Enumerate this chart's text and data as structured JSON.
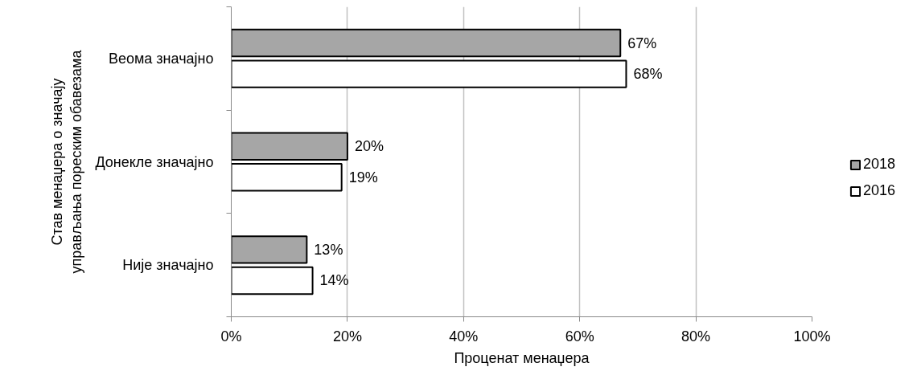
{
  "chart_data": {
    "type": "bar",
    "orientation": "horizontal",
    "ylabel": "Став менаџера о значају\nуправљања пореским обавезама",
    "xlabel": "Проценат менаџера",
    "categories": [
      "Веома значајно",
      "Донекле значајно",
      "Није значајно"
    ],
    "series": [
      {
        "name": "2018",
        "color": "#a6a6a6",
        "values": [
          67,
          20,
          13
        ],
        "value_labels": [
          "67%",
          "20%",
          "13%"
        ]
      },
      {
        "name": "2016",
        "color": "#ffffff",
        "values": [
          68,
          19,
          14
        ],
        "value_labels": [
          "68%",
          "19%",
          "14%"
        ]
      }
    ],
    "xlim": [
      0,
      100
    ],
    "xticks": [
      {
        "value": 0,
        "label": "0%"
      },
      {
        "value": 20,
        "label": "20%"
      },
      {
        "value": 40,
        "label": "40%"
      },
      {
        "value": 60,
        "label": "60%"
      },
      {
        "value": 80,
        "label": "80%"
      },
      {
        "value": 100,
        "label": "100%"
      }
    ],
    "grid": "x",
    "legend": "right"
  }
}
